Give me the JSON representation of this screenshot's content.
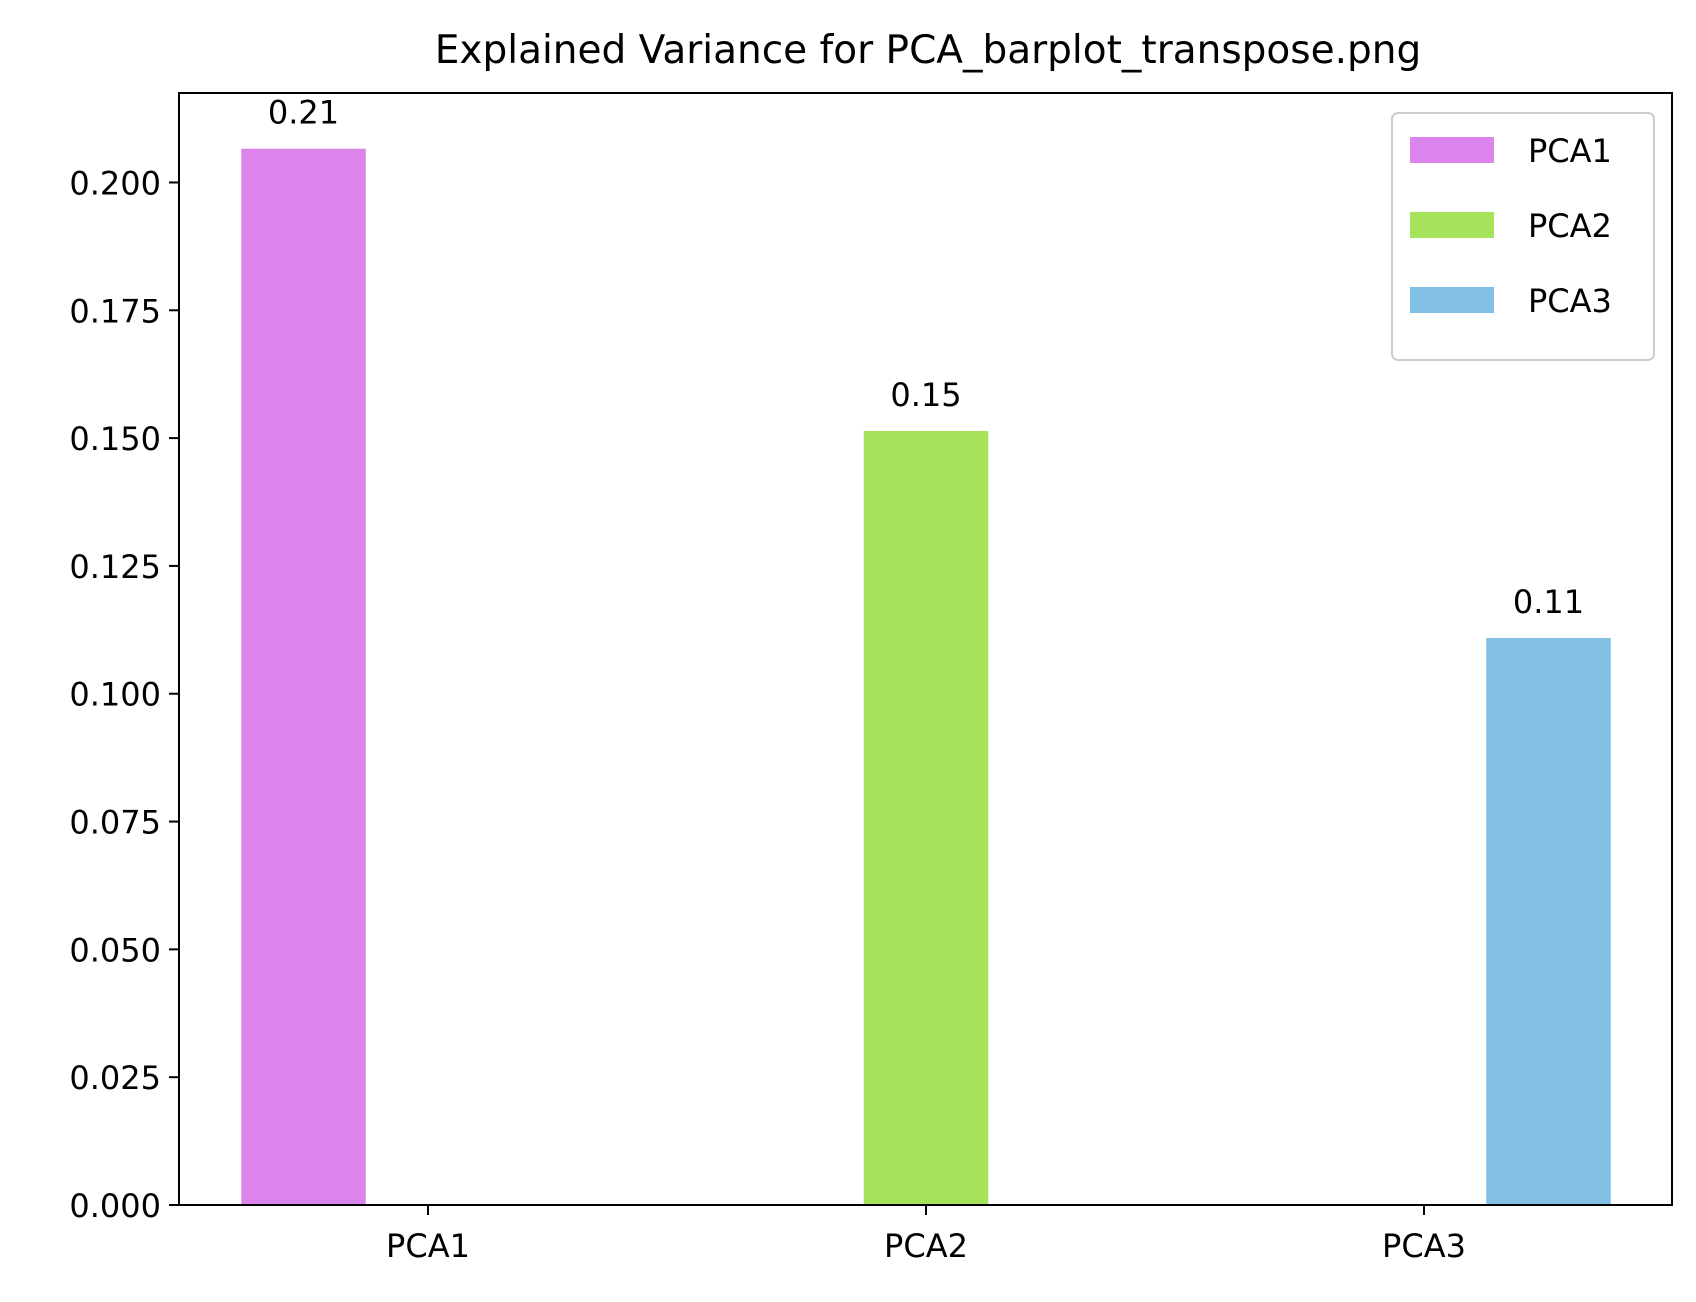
{
  "chart_data": {
    "type": "bar",
    "title": "Explained Variance for PCA_barplot_transpose.png",
    "xlabel": "",
    "ylabel": "",
    "categories": [
      "PCA1",
      "PCA2",
      "PCA3"
    ],
    "series": [
      {
        "name": "PCA1",
        "color": "#DA84EC",
        "values": [
          0.2066,
          null,
          null
        ],
        "labels": [
          "0.21",
          null,
          null
        ]
      },
      {
        "name": "PCA2",
        "color": "#A4E35A",
        "values": [
          null,
          0.1514,
          null
        ],
        "labels": [
          null,
          "0.15",
          null
        ]
      },
      {
        "name": "PCA3",
        "color": "#82BFE4",
        "values": [
          null,
          null,
          0.1109
        ],
        "labels": [
          null,
          null,
          "0.11"
        ]
      }
    ],
    "ylim": [
      0,
      0.2175
    ],
    "yticks": [
      0.0,
      0.025,
      0.05,
      0.075,
      0.1,
      0.125,
      0.15,
      0.175,
      0.2
    ],
    "ytick_labels": [
      "0.000",
      "0.025",
      "0.050",
      "0.075",
      "0.100",
      "0.125",
      "0.150",
      "0.175",
      "0.200"
    ],
    "grid": false,
    "legend_position": "top-right"
  }
}
